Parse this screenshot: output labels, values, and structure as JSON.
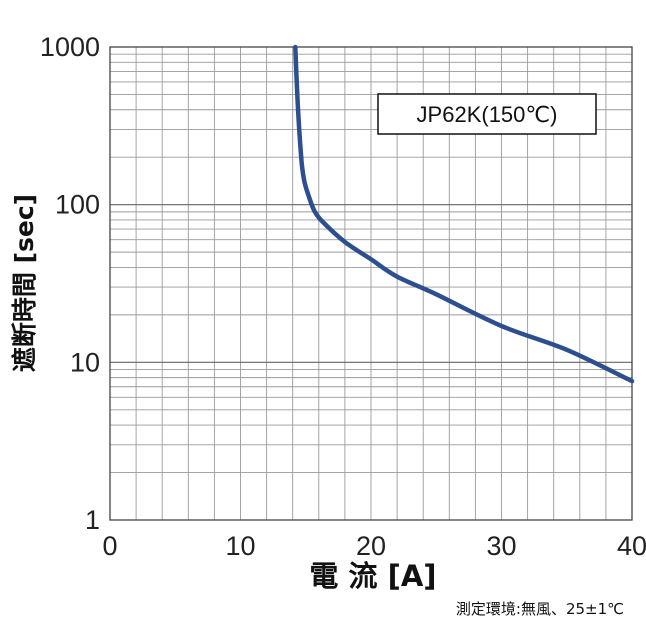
{
  "chart_data": {
    "type": "line",
    "title": "",
    "xlabel": "電 流 [A]",
    "ylabel": "遮断時間 [sec]",
    "xlim": [
      0,
      40
    ],
    "ylim": [
      1,
      1000
    ],
    "yscale": "log",
    "x_ticks": [
      "0",
      "10",
      "20",
      "30",
      "40"
    ],
    "y_ticks": [
      "1",
      "10",
      "100",
      "1000"
    ],
    "grid": true,
    "legend": {
      "label": "JP62K(150℃)",
      "position": "top-right"
    },
    "annotation": "測定環境:無風、25±1℃",
    "series": [
      {
        "color": "#2e4f8f",
        "points": [
          [
            14.2,
            1000
          ],
          [
            14.35,
            500
          ],
          [
            14.5,
            300
          ],
          [
            14.7,
            180
          ],
          [
            14.9,
            140
          ],
          [
            15.2,
            115
          ],
          [
            15.7,
            90
          ],
          [
            16.5,
            75
          ],
          [
            18,
            58
          ],
          [
            20,
            45
          ],
          [
            22,
            35
          ],
          [
            25,
            27
          ],
          [
            30,
            17
          ],
          [
            35,
            12
          ],
          [
            40,
            7.6
          ]
        ]
      }
    ]
  }
}
